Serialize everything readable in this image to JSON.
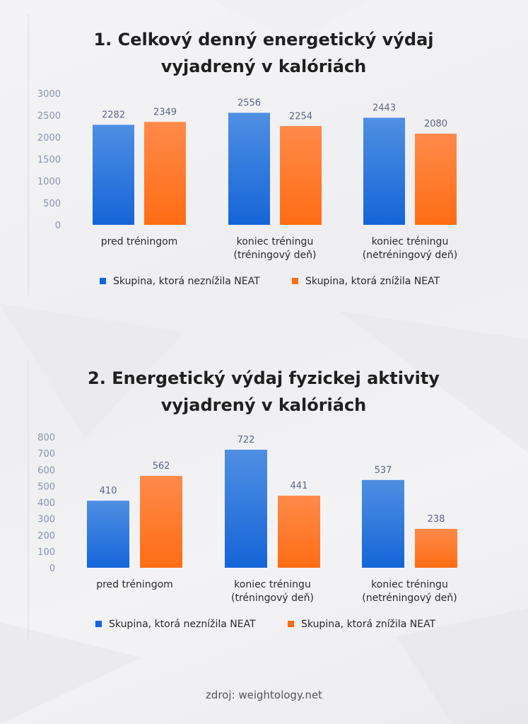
{
  "colors": {
    "blue_top": "#4f8fe3",
    "blue_bottom": "#1565d8",
    "orange_top": "#ff8a4a",
    "orange_bottom": "#ff6d14",
    "axis_text": "#8894ab",
    "label_text": "#5d6680"
  },
  "chart_data": [
    {
      "type": "bar",
      "title": "1. Celkový denný energetický výdaj vyjadrený v kalóriách",
      "title_lines": [
        "1. Celkový denný energetický výdaj",
        "vyjadrený v kalóriách"
      ],
      "categories": [
        [
          "pred tréningom"
        ],
        [
          "koniec tréningu",
          "(tréningový deň)"
        ],
        [
          "koniec tréningu",
          "(netréningový deň)"
        ]
      ],
      "series": [
        {
          "name": "Skupina, ktorá neznížila NEAT",
          "values": [
            2282,
            2556,
            2443
          ]
        },
        {
          "name": "Skupina, ktorá znížila NEAT",
          "values": [
            2349,
            2254,
            2080
          ]
        }
      ],
      "yticks": [
        0,
        500,
        1000,
        1500,
        2000,
        2500,
        3000
      ],
      "ylim": [
        0,
        3000
      ],
      "grid": false,
      "legend_position": "bottom"
    },
    {
      "type": "bar",
      "title": "2. Energetický výdaj fyzickej aktivity vyjadrený v kalóriách",
      "title_lines": [
        "2. Energetický výdaj fyzickej aktivity",
        "vyjadrený v kalóriách"
      ],
      "categories": [
        [
          "pred tréningom"
        ],
        [
          "koniec tréningu",
          "(tréningový deň)"
        ],
        [
          "koniec tréningu",
          "(netréningový deň)"
        ]
      ],
      "series": [
        {
          "name": "Skupina, ktorá neznížila NEAT",
          "values": [
            410,
            722,
            537
          ]
        },
        {
          "name": "Skupina, ktorá znížila NEAT",
          "values": [
            562,
            441,
            238
          ]
        }
      ],
      "yticks": [
        0,
        100,
        200,
        300,
        400,
        500,
        600,
        700,
        800
      ],
      "ylim": [
        0,
        800
      ],
      "grid": false,
      "legend_position": "bottom"
    }
  ],
  "source": "zdroj: weightology.net"
}
